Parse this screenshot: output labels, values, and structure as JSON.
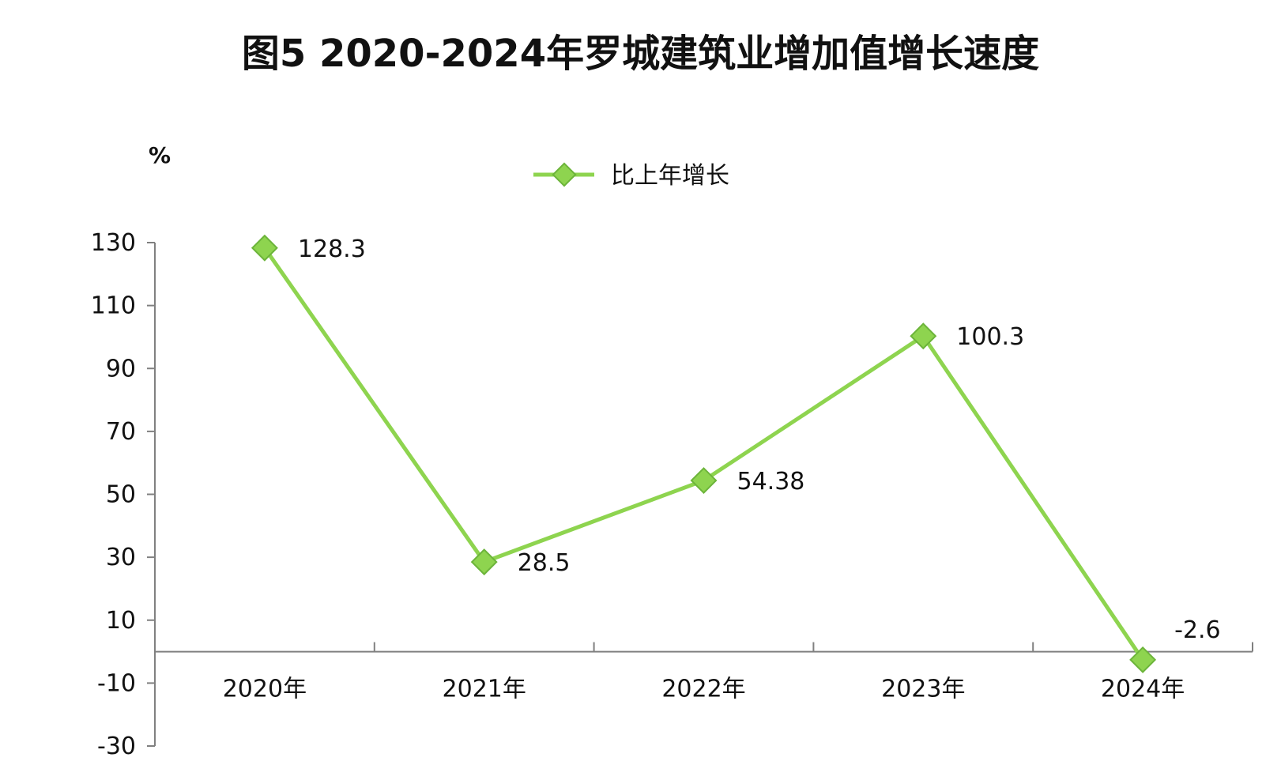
{
  "chart_data": {
    "type": "line",
    "title": "图5  2020-2024年罗城建筑业增加值增长速度",
    "unit_label": "%",
    "categories": [
      "2020年",
      "2021年",
      "2022年",
      "2023年",
      "2024年"
    ],
    "series": [
      {
        "name": "比上年增长",
        "values": [
          128.3,
          28.5,
          54.38,
          100.3,
          -2.6
        ],
        "labels": [
          "128.3",
          "28.5",
          "54.38",
          "100.3",
          "-2.6"
        ]
      }
    ],
    "ylim": [
      -30,
      130
    ],
    "yticks": [
      -30,
      -10,
      10,
      30,
      50,
      70,
      90,
      110,
      130
    ],
    "ytick_labels": [
      "-30",
      "-10",
      "10",
      "30",
      "50",
      "70",
      "90",
      "110",
      "130"
    ],
    "grid": false,
    "legend_position": "top-center",
    "colors": {
      "series": "#8ed44f",
      "marker_stroke": "#6cb43a",
      "axis": "#808080"
    }
  }
}
